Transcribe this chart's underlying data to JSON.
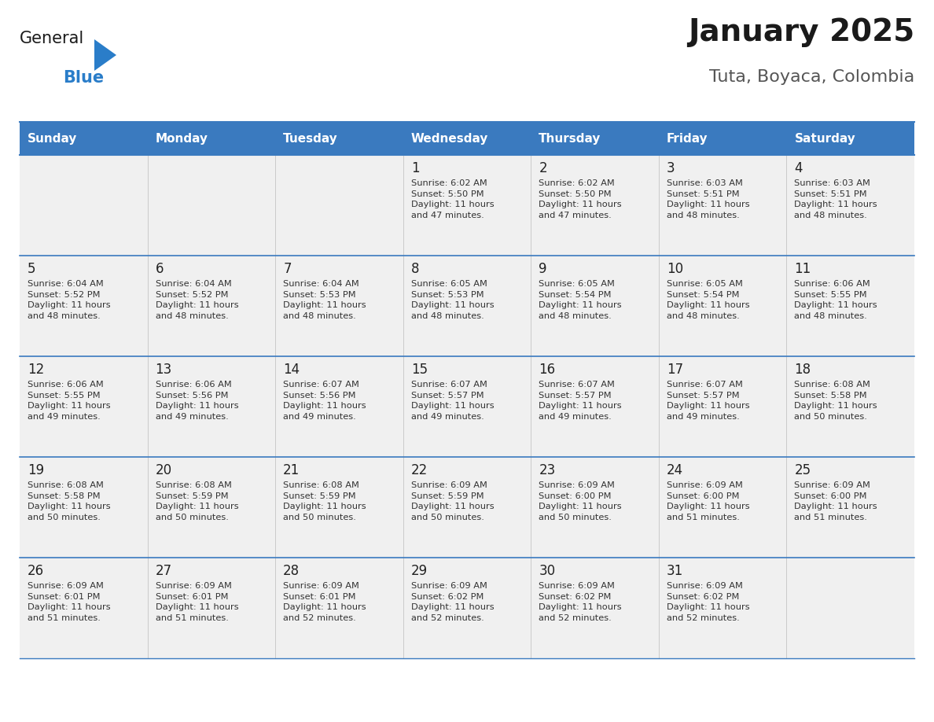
{
  "title": "January 2025",
  "subtitle": "Tuta, Boyaca, Colombia",
  "header_bg_color": "#3a7abf",
  "header_text_color": "#ffffff",
  "cell_bg_color_light": "#f0f0f0",
  "text_color": "#333333",
  "line_color": "#3a7abf",
  "days_of_week": [
    "Sunday",
    "Monday",
    "Tuesday",
    "Wednesday",
    "Thursday",
    "Friday",
    "Saturday"
  ],
  "weeks": [
    [
      {
        "day": "",
        "sunrise": "",
        "sunset": "",
        "daylight": ""
      },
      {
        "day": "",
        "sunrise": "",
        "sunset": "",
        "daylight": ""
      },
      {
        "day": "",
        "sunrise": "",
        "sunset": "",
        "daylight": ""
      },
      {
        "day": "1",
        "sunrise": "6:02 AM",
        "sunset": "5:50 PM",
        "daylight": "11 hours\nand 47 minutes."
      },
      {
        "day": "2",
        "sunrise": "6:02 AM",
        "sunset": "5:50 PM",
        "daylight": "11 hours\nand 47 minutes."
      },
      {
        "day": "3",
        "sunrise": "6:03 AM",
        "sunset": "5:51 PM",
        "daylight": "11 hours\nand 48 minutes."
      },
      {
        "day": "4",
        "sunrise": "6:03 AM",
        "sunset": "5:51 PM",
        "daylight": "11 hours\nand 48 minutes."
      }
    ],
    [
      {
        "day": "5",
        "sunrise": "6:04 AM",
        "sunset": "5:52 PM",
        "daylight": "11 hours\nand 48 minutes."
      },
      {
        "day": "6",
        "sunrise": "6:04 AM",
        "sunset": "5:52 PM",
        "daylight": "11 hours\nand 48 minutes."
      },
      {
        "day": "7",
        "sunrise": "6:04 AM",
        "sunset": "5:53 PM",
        "daylight": "11 hours\nand 48 minutes."
      },
      {
        "day": "8",
        "sunrise": "6:05 AM",
        "sunset": "5:53 PM",
        "daylight": "11 hours\nand 48 minutes."
      },
      {
        "day": "9",
        "sunrise": "6:05 AM",
        "sunset": "5:54 PM",
        "daylight": "11 hours\nand 48 minutes."
      },
      {
        "day": "10",
        "sunrise": "6:05 AM",
        "sunset": "5:54 PM",
        "daylight": "11 hours\nand 48 minutes."
      },
      {
        "day": "11",
        "sunrise": "6:06 AM",
        "sunset": "5:55 PM",
        "daylight": "11 hours\nand 48 minutes."
      }
    ],
    [
      {
        "day": "12",
        "sunrise": "6:06 AM",
        "sunset": "5:55 PM",
        "daylight": "11 hours\nand 49 minutes."
      },
      {
        "day": "13",
        "sunrise": "6:06 AM",
        "sunset": "5:56 PM",
        "daylight": "11 hours\nand 49 minutes."
      },
      {
        "day": "14",
        "sunrise": "6:07 AM",
        "sunset": "5:56 PM",
        "daylight": "11 hours\nand 49 minutes."
      },
      {
        "day": "15",
        "sunrise": "6:07 AM",
        "sunset": "5:57 PM",
        "daylight": "11 hours\nand 49 minutes."
      },
      {
        "day": "16",
        "sunrise": "6:07 AM",
        "sunset": "5:57 PM",
        "daylight": "11 hours\nand 49 minutes."
      },
      {
        "day": "17",
        "sunrise": "6:07 AM",
        "sunset": "5:57 PM",
        "daylight": "11 hours\nand 49 minutes."
      },
      {
        "day": "18",
        "sunrise": "6:08 AM",
        "sunset": "5:58 PM",
        "daylight": "11 hours\nand 50 minutes."
      }
    ],
    [
      {
        "day": "19",
        "sunrise": "6:08 AM",
        "sunset": "5:58 PM",
        "daylight": "11 hours\nand 50 minutes."
      },
      {
        "day": "20",
        "sunrise": "6:08 AM",
        "sunset": "5:59 PM",
        "daylight": "11 hours\nand 50 minutes."
      },
      {
        "day": "21",
        "sunrise": "6:08 AM",
        "sunset": "5:59 PM",
        "daylight": "11 hours\nand 50 minutes."
      },
      {
        "day": "22",
        "sunrise": "6:09 AM",
        "sunset": "5:59 PM",
        "daylight": "11 hours\nand 50 minutes."
      },
      {
        "day": "23",
        "sunrise": "6:09 AM",
        "sunset": "6:00 PM",
        "daylight": "11 hours\nand 50 minutes."
      },
      {
        "day": "24",
        "sunrise": "6:09 AM",
        "sunset": "6:00 PM",
        "daylight": "11 hours\nand 51 minutes."
      },
      {
        "day": "25",
        "sunrise": "6:09 AM",
        "sunset": "6:00 PM",
        "daylight": "11 hours\nand 51 minutes."
      }
    ],
    [
      {
        "day": "26",
        "sunrise": "6:09 AM",
        "sunset": "6:01 PM",
        "daylight": "11 hours\nand 51 minutes."
      },
      {
        "day": "27",
        "sunrise": "6:09 AM",
        "sunset": "6:01 PM",
        "daylight": "11 hours\nand 51 minutes."
      },
      {
        "day": "28",
        "sunrise": "6:09 AM",
        "sunset": "6:01 PM",
        "daylight": "11 hours\nand 52 minutes."
      },
      {
        "day": "29",
        "sunrise": "6:09 AM",
        "sunset": "6:02 PM",
        "daylight": "11 hours\nand 52 minutes."
      },
      {
        "day": "30",
        "sunrise": "6:09 AM",
        "sunset": "6:02 PM",
        "daylight": "11 hours\nand 52 minutes."
      },
      {
        "day": "31",
        "sunrise": "6:09 AM",
        "sunset": "6:02 PM",
        "daylight": "11 hours\nand 52 minutes."
      },
      {
        "day": "",
        "sunrise": "",
        "sunset": "",
        "daylight": ""
      }
    ]
  ],
  "logo_text_general": "General",
  "logo_text_blue": "Blue",
  "logo_color_general": "#1a1a1a",
  "logo_color_blue": "#2a7dc9",
  "logo_triangle_color": "#2a7dc9"
}
